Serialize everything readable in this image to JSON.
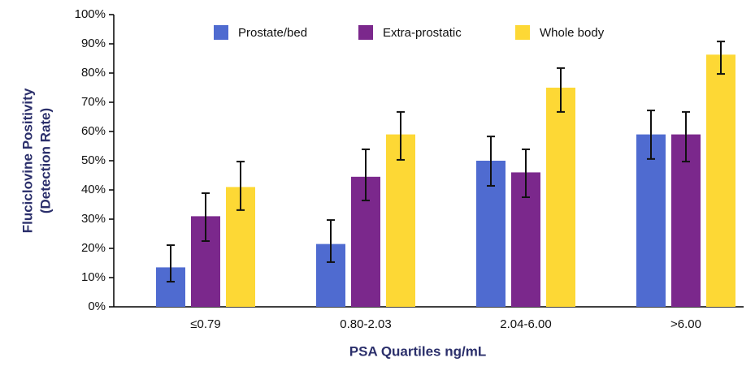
{
  "chart_data": {
    "type": "bar",
    "ylabel": [
      "Fluciclovine Positivity",
      "(Detection Rate)"
    ],
    "xlabel": "PSA Quartiles ng/mL",
    "categories": [
      "≤0.79",
      "0.80-2.03",
      "2.04-6.00",
      ">6.00"
    ],
    "series": [
      {
        "name": "Prostate/bed",
        "color": "#4f6bd0",
        "values": [
          13.5,
          21.5,
          50,
          59
        ],
        "ci_low": [
          8.6,
          15.3,
          41.4,
          50.6
        ],
        "ci_high": [
          21.1,
          29.7,
          58.3,
          67.2
        ]
      },
      {
        "name": "Extra-prostatic",
        "color": "#7b288c",
        "values": [
          31,
          44.5,
          46,
          59
        ],
        "ci_low": [
          22.5,
          36.4,
          37.5,
          49.7
        ],
        "ci_high": [
          38.9,
          53.9,
          53.9,
          66.7
        ]
      },
      {
        "name": "Whole body",
        "color": "#fdd835",
        "values": [
          41,
          59,
          75,
          86.3
        ],
        "ci_low": [
          33.1,
          50.3,
          66.7,
          79.7
        ],
        "ci_high": [
          49.7,
          66.7,
          81.7,
          90.8
        ]
      }
    ],
    "ylim": [
      0,
      100
    ],
    "yticks": [
      {
        "value": 0,
        "label": "0%"
      },
      {
        "value": 10,
        "label": "10%"
      },
      {
        "value": 20,
        "label": "20%"
      },
      {
        "value": 30,
        "label": "30%"
      },
      {
        "value": 40,
        "label": "40%"
      },
      {
        "value": 50,
        "label": "50%"
      },
      {
        "value": 60,
        "label": "60%"
      },
      {
        "value": 70,
        "label": "70%"
      },
      {
        "value": 80,
        "label": "80%"
      },
      {
        "value": 90,
        "label": "90%"
      },
      {
        "value": 100,
        "label": "100%"
      }
    ],
    "grid": false
  }
}
